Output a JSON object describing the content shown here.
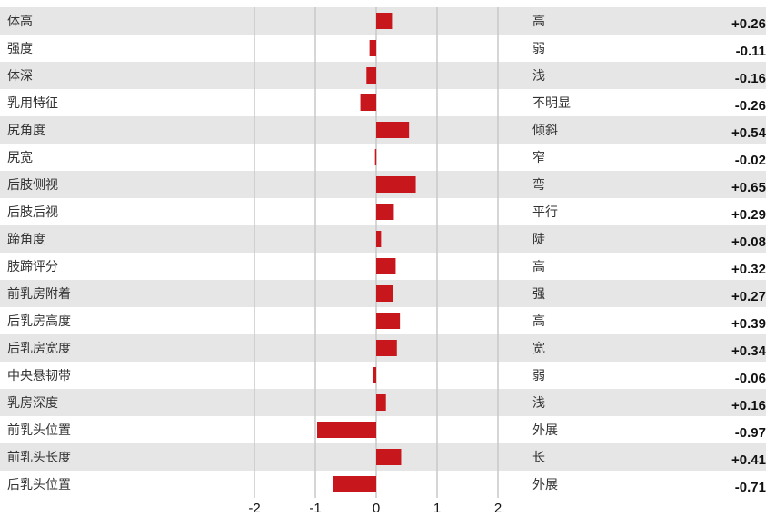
{
  "chart_data": {
    "type": "bar",
    "orientation": "horizontal",
    "categories": [
      "体高",
      "强度",
      "体深",
      "乳用特征",
      "尻角度",
      "尻宽",
      "后肢侧视",
      "后肢后视",
      "蹄角度",
      "肢蹄评分",
      "前乳房附着",
      "后乳房高度",
      "后乳房宽度",
      "中央悬韧带",
      "乳房深度",
      "前乳头位置",
      "前乳头长度",
      "后乳头位置"
    ],
    "right_labels": [
      "高",
      "弱",
      "浅",
      "不明显",
      "倾斜",
      "窄",
      "弯",
      "平行",
      "陡",
      "高",
      "强",
      "高",
      "宽",
      "弱",
      "浅",
      "外展",
      "长",
      "外展"
    ],
    "values": [
      0.26,
      -0.11,
      -0.16,
      -0.26,
      0.54,
      -0.02,
      0.65,
      0.29,
      0.08,
      0.32,
      0.27,
      0.39,
      0.34,
      -0.06,
      0.16,
      -0.97,
      0.41,
      -0.71
    ],
    "value_labels": [
      "+0.26",
      "-0.11",
      "-0.16",
      "-0.26",
      "+0.54",
      "-0.02",
      "+0.65",
      "+0.29",
      "+0.08",
      "+0.32",
      "+0.27",
      "+0.39",
      "+0.34",
      "-0.06",
      "+0.16",
      "-0.97",
      "+0.41",
      "-0.71"
    ],
    "xlim": [
      -2,
      2
    ],
    "xticks": [
      "-2",
      "-1",
      "0",
      "1",
      "2"
    ],
    "grid": true,
    "colors": {
      "bar": "#c8161d",
      "stripe": "#e6e6e6",
      "grid": "#c8c8c8"
    }
  }
}
